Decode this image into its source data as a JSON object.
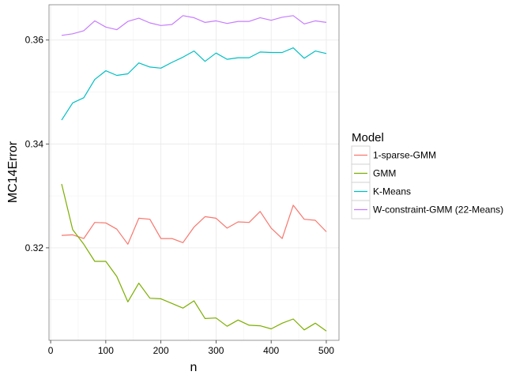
{
  "chart_data": {
    "type": "line",
    "xlabel": "n",
    "ylabel": "MC14Error",
    "xlim": [
      -3,
      523
    ],
    "ylim": [
      0.3022,
      0.3668
    ],
    "xticks": [
      0,
      100,
      200,
      300,
      400,
      500
    ],
    "yticks": [
      0.32,
      0.34,
      0.36
    ],
    "xtick_labels": [
      "0",
      "100",
      "200",
      "300",
      "400",
      "500"
    ],
    "ytick_labels": [
      "0.32",
      "0.34",
      "0.36"
    ],
    "grid": true,
    "legend_title": "Model",
    "legend_position": "right",
    "x": [
      20,
      40,
      60,
      80,
      100,
      120,
      140,
      160,
      180,
      200,
      220,
      240,
      260,
      280,
      300,
      320,
      340,
      360,
      380,
      400,
      420,
      440,
      460,
      480,
      500
    ],
    "series": [
      {
        "name": "1-sparse-GMM",
        "color": "#F8766D",
        "values": [
          0.3224,
          0.3225,
          0.3218,
          0.3249,
          0.3248,
          0.3236,
          0.3207,
          0.3257,
          0.3255,
          0.3218,
          0.3218,
          0.321,
          0.324,
          0.326,
          0.3257,
          0.3238,
          0.325,
          0.3249,
          0.327,
          0.3238,
          0.3218,
          0.3282,
          0.3255,
          0.3253,
          0.3231
        ]
      },
      {
        "name": "GMM",
        "color": "#7CAE00",
        "values": [
          0.3323,
          0.3235,
          0.3207,
          0.3174,
          0.3174,
          0.3145,
          0.3096,
          0.3132,
          0.3103,
          0.3102,
          0.3093,
          0.3084,
          0.3098,
          0.3064,
          0.3065,
          0.3049,
          0.3061,
          0.3051,
          0.305,
          0.3044,
          0.3055,
          0.3063,
          0.3042,
          0.3055,
          0.304
        ]
      },
      {
        "name": "K-Means",
        "color": "#00BFC4",
        "values": [
          0.3446,
          0.3479,
          0.3489,
          0.3524,
          0.3541,
          0.3532,
          0.3535,
          0.3556,
          0.3548,
          0.3546,
          0.3557,
          0.3567,
          0.3579,
          0.3559,
          0.3575,
          0.3563,
          0.3566,
          0.3566,
          0.3577,
          0.3576,
          0.3576,
          0.3585,
          0.3565,
          0.3579,
          0.3574
        ]
      },
      {
        "name": "W-constraint-GMM (22-Means)",
        "color": "#C77CFF",
        "values": [
          0.3609,
          0.3612,
          0.3618,
          0.3637,
          0.3625,
          0.362,
          0.3636,
          0.3642,
          0.3633,
          0.3628,
          0.363,
          0.3647,
          0.3643,
          0.3634,
          0.3637,
          0.3632,
          0.3636,
          0.3636,
          0.3643,
          0.3638,
          0.3644,
          0.3647,
          0.3631,
          0.3637,
          0.3634
        ]
      }
    ]
  }
}
